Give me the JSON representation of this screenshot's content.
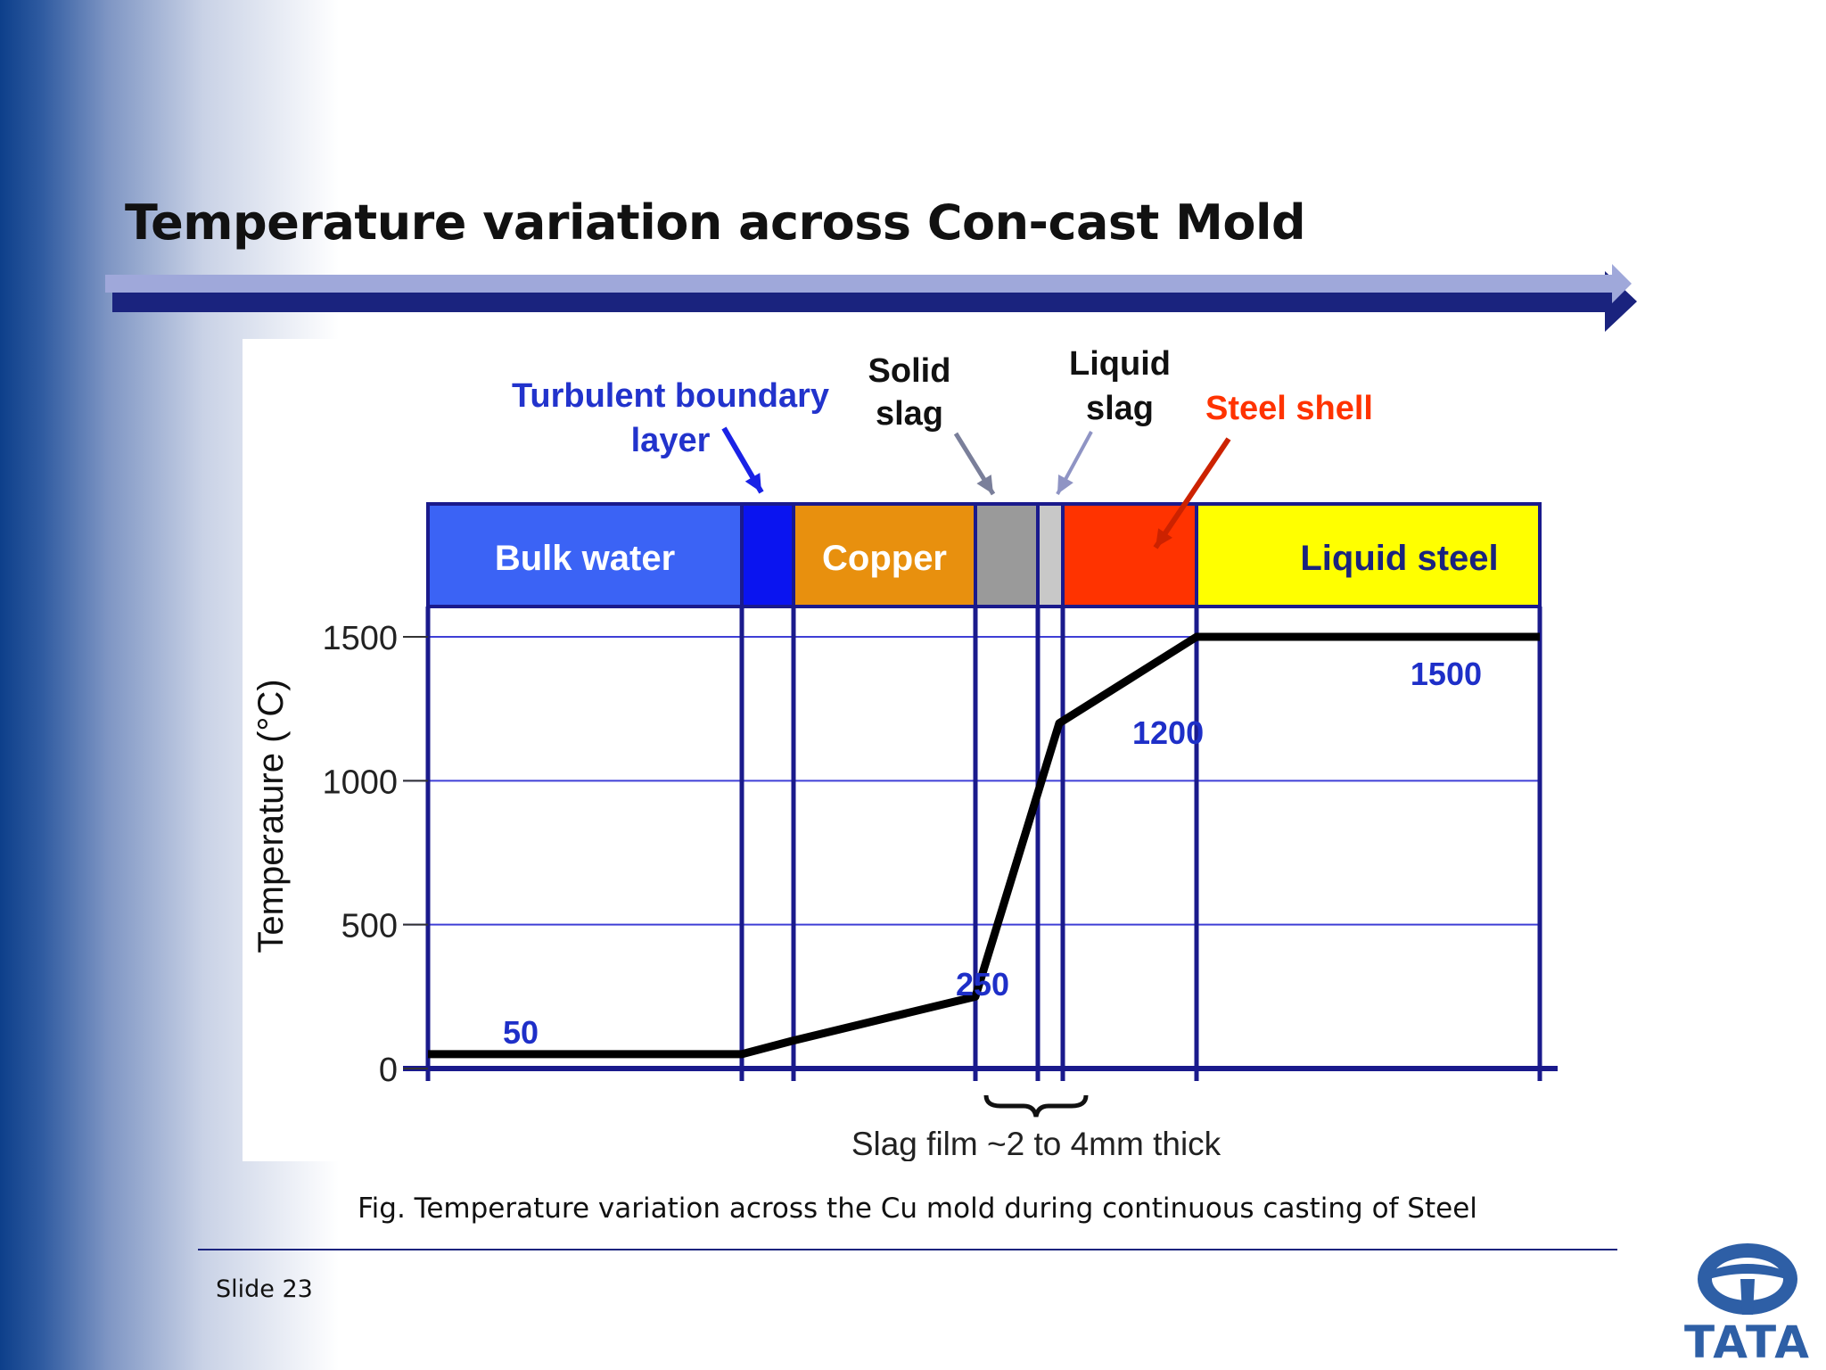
{
  "slide": {
    "title": "Temperature variation across Con-cast Mold",
    "caption": "Fig. Temperature variation across the Cu mold during continuous casting of Steel",
    "slide_number": "Slide 23",
    "logo_text": "TATA"
  },
  "colors": {
    "title_arrow_light": "#9fa8da",
    "title_arrow_dark": "#1a237e",
    "grid": "#3f3fd6",
    "frame": "#1a1a8c",
    "profile": "#000000",
    "value_label": "#1e2fc8",
    "callout_blue": "#2233cc",
    "callout_black": "#111111",
    "callout_red": "#ff3300",
    "logo": "#2e5fa6"
  },
  "chart_data": {
    "type": "line",
    "ylabel": "Temperature (°C)",
    "yticks": [
      0,
      500,
      1000,
      1500
    ],
    "ylim": [
      0,
      1500
    ],
    "grid": true,
    "regions": [
      {
        "name": "Bulk water",
        "color": "#3b63f5",
        "label_color": "#ffffff"
      },
      {
        "name": "",
        "color": "#0a14f0",
        "label_color": "#ffffff"
      },
      {
        "name": "Copper",
        "color": "#e8900e",
        "label_color": "#ffffff"
      },
      {
        "name": "",
        "color": "#9a9a9a",
        "label_color": "#ffffff"
      },
      {
        "name": "",
        "color": "#c8c8c8",
        "label_color": "#ffffff"
      },
      {
        "name": "",
        "color": "#ff3300",
        "label_color": "#ffffff"
      },
      {
        "name": "Liquid steel",
        "color": "#ffff00",
        "label_color": "#1a237e"
      }
    ],
    "series": [
      {
        "values": [
          50,
          50,
          95,
          250,
          1200,
          1500,
          1500
        ]
      }
    ],
    "value_labels": [
      "50",
      "250",
      "1200",
      "1500"
    ],
    "callouts": {
      "turbulent_line1": "Turbulent boundary",
      "turbulent_line2": "layer",
      "solid_slag_line1": "Solid",
      "solid_slag_line2": "slag",
      "liquid_slag_line1": "Liquid",
      "liquid_slag_line2": "slag",
      "steel_shell": "Steel shell"
    },
    "brace_label": "Slag film ~2 to 4mm thick"
  }
}
